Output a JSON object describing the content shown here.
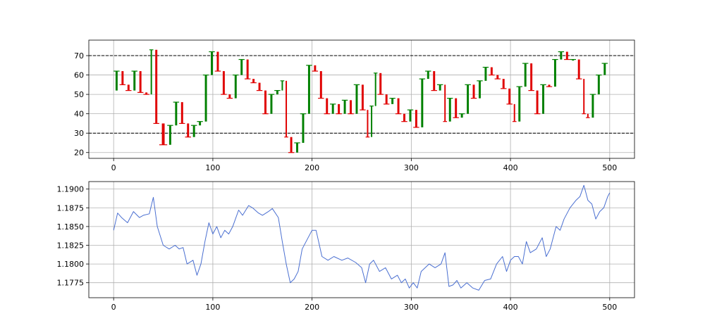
{
  "chart_data": [
    {
      "type": "candlestick",
      "title": "",
      "xlabel": "",
      "ylabel": "",
      "xlim": [
        -25,
        525
      ],
      "ylim": [
        17,
        78
      ],
      "xticks": [
        0,
        100,
        200,
        300,
        400,
        500
      ],
      "yticks": [
        20,
        30,
        40,
        50,
        60,
        70
      ],
      "grid": true,
      "reference_lines": [
        70,
        30
      ],
      "colors": {
        "up": "#008000",
        "down": "#e00000",
        "reference": "#000000"
      },
      "series": [
        {
          "x": [
            0,
            6,
            12,
            18,
            24,
            30,
            36,
            40,
            46,
            54,
            60,
            66,
            72,
            78,
            84,
            90,
            96,
            102,
            108,
            114,
            120,
            126,
            132,
            138,
            144,
            150,
            156,
            162,
            168,
            172,
            176,
            182,
            188,
            194,
            200,
            206,
            212,
            218,
            224,
            230,
            236,
            242,
            248,
            254,
            258,
            262,
            266,
            272,
            278,
            284,
            290,
            296,
            302,
            308,
            314,
            320,
            326,
            332,
            336,
            342,
            348,
            354,
            360,
            366,
            372,
            378,
            384,
            390,
            396,
            402,
            406,
            412,
            418,
            424,
            430,
            436,
            442,
            448,
            454,
            460,
            466,
            472,
            476,
            480,
            486,
            492,
            498
          ],
          "values": [
            52,
            62,
            55,
            52,
            62,
            51,
            50,
            73,
            35,
            24,
            34,
            46,
            35,
            28,
            34,
            36,
            60,
            72,
            62,
            50,
            48,
            60,
            68,
            58,
            56,
            52,
            40,
            50,
            52,
            57,
            28,
            20,
            25,
            40,
            65,
            62,
            48,
            40,
            45,
            40,
            47,
            40,
            55,
            42,
            28,
            44,
            61,
            50,
            45,
            48,
            40,
            36,
            42,
            33,
            58,
            62,
            52,
            55,
            36,
            48,
            38,
            40,
            55,
            48,
            57,
            64,
            60,
            58,
            53,
            45,
            36,
            54,
            66,
            52,
            40,
            55,
            54,
            68,
            72,
            68,
            68,
            58,
            40,
            38,
            50,
            60,
            66
          ]
        }
      ]
    },
    {
      "type": "line",
      "title": "",
      "xlabel": "",
      "ylabel": "",
      "xlim": [
        -25,
        525
      ],
      "ylim": [
        1.1755,
        1.191
      ],
      "xticks": [
        0,
        100,
        200,
        300,
        400,
        500
      ],
      "yticks": [
        "1.1775",
        "1.1800",
        "1.1825",
        "1.1850",
        "1.1875",
        "1.1900"
      ],
      "grid": true,
      "colors": {
        "line": "#4a6fd1"
      },
      "series": [
        {
          "x": [
            0,
            4,
            8,
            14,
            20,
            26,
            30,
            36,
            40,
            44,
            50,
            56,
            62,
            66,
            70,
            74,
            80,
            84,
            88,
            92,
            96,
            100,
            104,
            108,
            112,
            116,
            120,
            126,
            130,
            136,
            140,
            146,
            150,
            156,
            160,
            166,
            170,
            174,
            178,
            182,
            186,
            190,
            196,
            200,
            204,
            210,
            216,
            222,
            230,
            236,
            244,
            250,
            254,
            258,
            262,
            268,
            274,
            280,
            286,
            290,
            294,
            298,
            302,
            306,
            310,
            314,
            318,
            324,
            330,
            334,
            338,
            342,
            346,
            350,
            356,
            362,
            368,
            374,
            380,
            386,
            392,
            396,
            400,
            404,
            408,
            412,
            416,
            420,
            426,
            432,
            436,
            440,
            446,
            450,
            454,
            460,
            466,
            470,
            474,
            478,
            482,
            486,
            490,
            494,
            498,
            500
          ],
          "values": [
            1.1845,
            1.1868,
            1.1862,
            1.1855,
            1.187,
            1.1862,
            1.1865,
            1.1867,
            1.1889,
            1.185,
            1.1825,
            1.182,
            1.1825,
            1.182,
            1.1822,
            1.18,
            1.1805,
            1.1785,
            1.18,
            1.183,
            1.1855,
            1.184,
            1.185,
            1.1835,
            1.1845,
            1.184,
            1.185,
            1.1872,
            1.1865,
            1.1878,
            1.1875,
            1.1868,
            1.1865,
            1.187,
            1.1874,
            1.1862,
            1.183,
            1.18,
            1.1775,
            1.178,
            1.179,
            1.182,
            1.1835,
            1.1845,
            1.1845,
            1.181,
            1.1805,
            1.181,
            1.1805,
            1.1808,
            1.1802,
            1.1795,
            1.1775,
            1.18,
            1.1805,
            1.179,
            1.1795,
            1.178,
            1.1785,
            1.1775,
            1.178,
            1.1768,
            1.1775,
            1.1768,
            1.179,
            1.1795,
            1.18,
            1.1795,
            1.18,
            1.1815,
            1.177,
            1.1772,
            1.1778,
            1.1768,
            1.1775,
            1.1768,
            1.1765,
            1.1778,
            1.178,
            1.18,
            1.181,
            1.179,
            1.1805,
            1.181,
            1.181,
            1.18,
            1.183,
            1.1815,
            1.182,
            1.1835,
            1.181,
            1.182,
            1.185,
            1.1845,
            1.186,
            1.1875,
            1.1885,
            1.189,
            1.1905,
            1.1885,
            1.188,
            1.186,
            1.187,
            1.1875,
            1.189,
            1.1895
          ]
        }
      ]
    }
  ]
}
